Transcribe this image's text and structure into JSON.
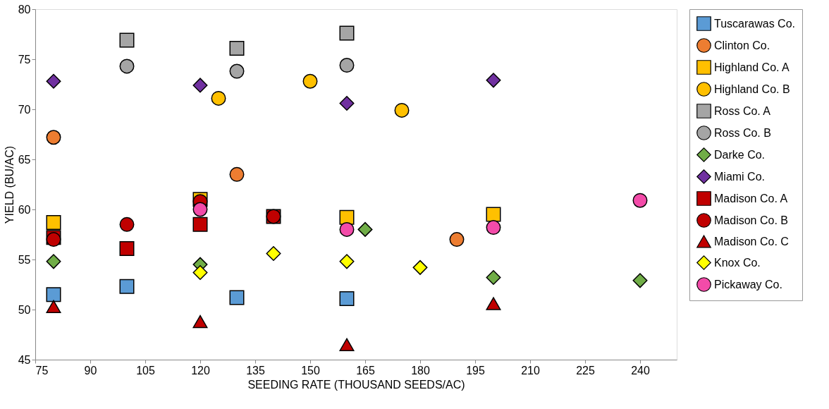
{
  "chart_data": {
    "type": "scatter",
    "xlabel": "SEEDING RATE (THOUSAND SEEDS/AC)",
    "ylabel": "YIELD (BU/AC)",
    "xlim": [
      75,
      250
    ],
    "xticks": [
      75,
      90,
      105,
      120,
      135,
      150,
      165,
      180,
      195,
      210,
      225,
      240
    ],
    "ylim": [
      45,
      80
    ],
    "yticks": [
      45,
      50,
      55,
      60,
      65,
      70,
      75,
      80
    ],
    "grid": false,
    "legend": "right",
    "series": [
      {
        "name": "Tuscarawas Co.",
        "color": "#5b9bd5",
        "marker": "square",
        "x": [
          80,
          100,
          130,
          160
        ],
        "values": [
          51.5,
          52.3,
          51.2,
          51.1
        ]
      },
      {
        "name": "Clinton Co.",
        "color": "#ed7d31",
        "marker": "circle",
        "x": [
          80,
          130,
          190
        ],
        "values": [
          67.2,
          63.5,
          57.0
        ]
      },
      {
        "name": "Highland Co. A",
        "color": "#ffc000",
        "marker": "square",
        "x": [
          80,
          120,
          160,
          200
        ],
        "values": [
          58.7,
          61.0,
          59.2,
          59.5
        ]
      },
      {
        "name": "Highland Co. B",
        "color": "#ffc000",
        "marker": "circle",
        "x": [
          125,
          150,
          175
        ],
        "values": [
          71.1,
          72.8,
          69.9
        ]
      },
      {
        "name": "Ross Co. A",
        "color": "#a5a5a5",
        "marker": "square",
        "x": [
          100,
          130,
          160
        ],
        "values": [
          76.9,
          76.1,
          77.6
        ]
      },
      {
        "name": "Ross Co. B",
        "color": "#a5a5a5",
        "marker": "circle",
        "x": [
          100,
          130,
          160
        ],
        "values": [
          74.3,
          73.8,
          74.4
        ]
      },
      {
        "name": "Darke Co.",
        "color": "#70ad47",
        "marker": "diamond",
        "x": [
          80,
          120,
          165,
          200,
          240
        ],
        "values": [
          54.8,
          54.5,
          58.0,
          53.2,
          52.9
        ]
      },
      {
        "name": "Miami Co.",
        "color": "#7030a0",
        "marker": "diamond",
        "x": [
          80,
          120,
          160,
          200
        ],
        "values": [
          72.8,
          72.4,
          70.6,
          72.9
        ]
      },
      {
        "name": "Madison Co. A",
        "color": "#c00000",
        "marker": "square",
        "x": [
          80,
          100,
          120,
          140
        ],
        "values": [
          57.2,
          56.1,
          58.5,
          59.3
        ]
      },
      {
        "name": "Madison Co. B",
        "color": "#c00000",
        "marker": "circle",
        "x": [
          80,
          100,
          120,
          140
        ],
        "values": [
          57.0,
          58.5,
          60.8,
          59.3
        ]
      },
      {
        "name": "Madison Co. C",
        "color": "#c00000",
        "marker": "triangle",
        "x": [
          80,
          120,
          160,
          200
        ],
        "values": [
          50.3,
          48.8,
          46.5,
          50.6
        ]
      },
      {
        "name": "Knox Co.",
        "color": "#ffff00",
        "marker": "diamond",
        "x": [
          120,
          140,
          160,
          180
        ],
        "values": [
          53.7,
          55.6,
          54.8,
          54.2
        ]
      },
      {
        "name": "Pickaway Co.",
        "color": "#f34ba9",
        "marker": "circle",
        "x": [
          120,
          160,
          200,
          240
        ],
        "values": [
          60.0,
          58.0,
          58.2,
          60.9
        ]
      }
    ]
  }
}
